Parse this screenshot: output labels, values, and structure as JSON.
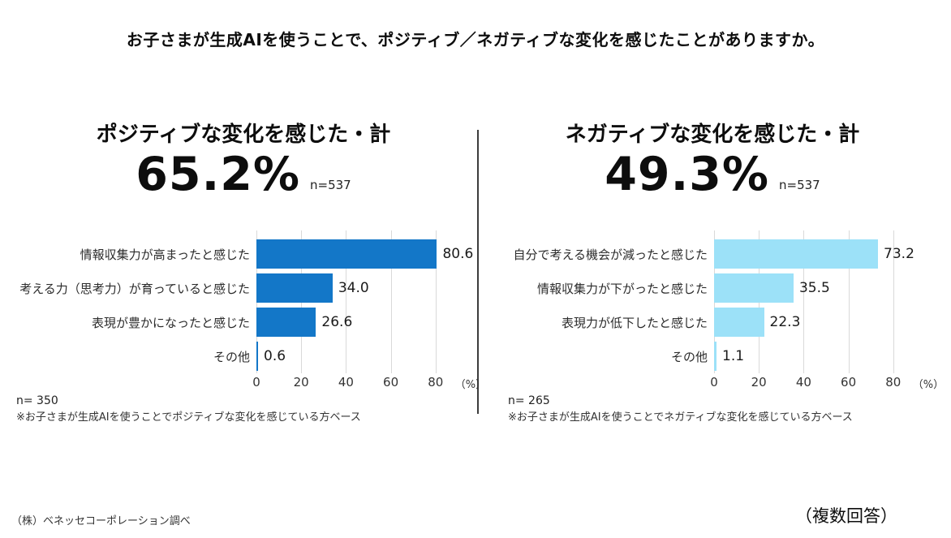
{
  "title": "お子さまが生成AIを使うことで、ポジティブ／ネガティブな変化を感じたことがありますか。",
  "footer": {
    "source": "（株）ベネッセコーポレーション調べ",
    "multiple_answers": "（複数回答）"
  },
  "chart_data": [
    {
      "type": "bar",
      "orientation": "horizontal",
      "title": "ポジティブな変化を感じた・計",
      "total_pct": "65.2%",
      "total_n": "n=537",
      "categories": [
        "情報収集力が高まったと感じた",
        "考える力（思考力）が育っていると感じた",
        "表現が豊かになったと感じた",
        "その他"
      ],
      "values": [
        80.6,
        34.0,
        26.6,
        0.6
      ],
      "xlim": [
        0,
        80
      ],
      "x_ticks": [
        0,
        20,
        40,
        60,
        80
      ],
      "x_unit": "（%）",
      "bar_color": "#1377c8",
      "grid": true,
      "n_label": "n= 350",
      "base_note": "※お子さまが生成AIを使うことでポジティブな変化を感じている方ベース"
    },
    {
      "type": "bar",
      "orientation": "horizontal",
      "title": "ネガティブな変化を感じた・計",
      "total_pct": "49.3%",
      "total_n": "n=537",
      "categories": [
        "自分で考える機会が減ったと感じた",
        "情報収集力が下がったと感じた",
        "表現力が低下したと感じた",
        "その他"
      ],
      "values": [
        73.2,
        35.5,
        22.3,
        1.1
      ],
      "xlim": [
        0,
        80
      ],
      "x_ticks": [
        0,
        20,
        40,
        60,
        80
      ],
      "x_unit": "（%）",
      "bar_color": "#9ce1f8",
      "grid": true,
      "n_label": "n= 265",
      "base_note": "※お子さまが生成AIを使うことでネガティブな変化を感じている方ベース"
    }
  ]
}
